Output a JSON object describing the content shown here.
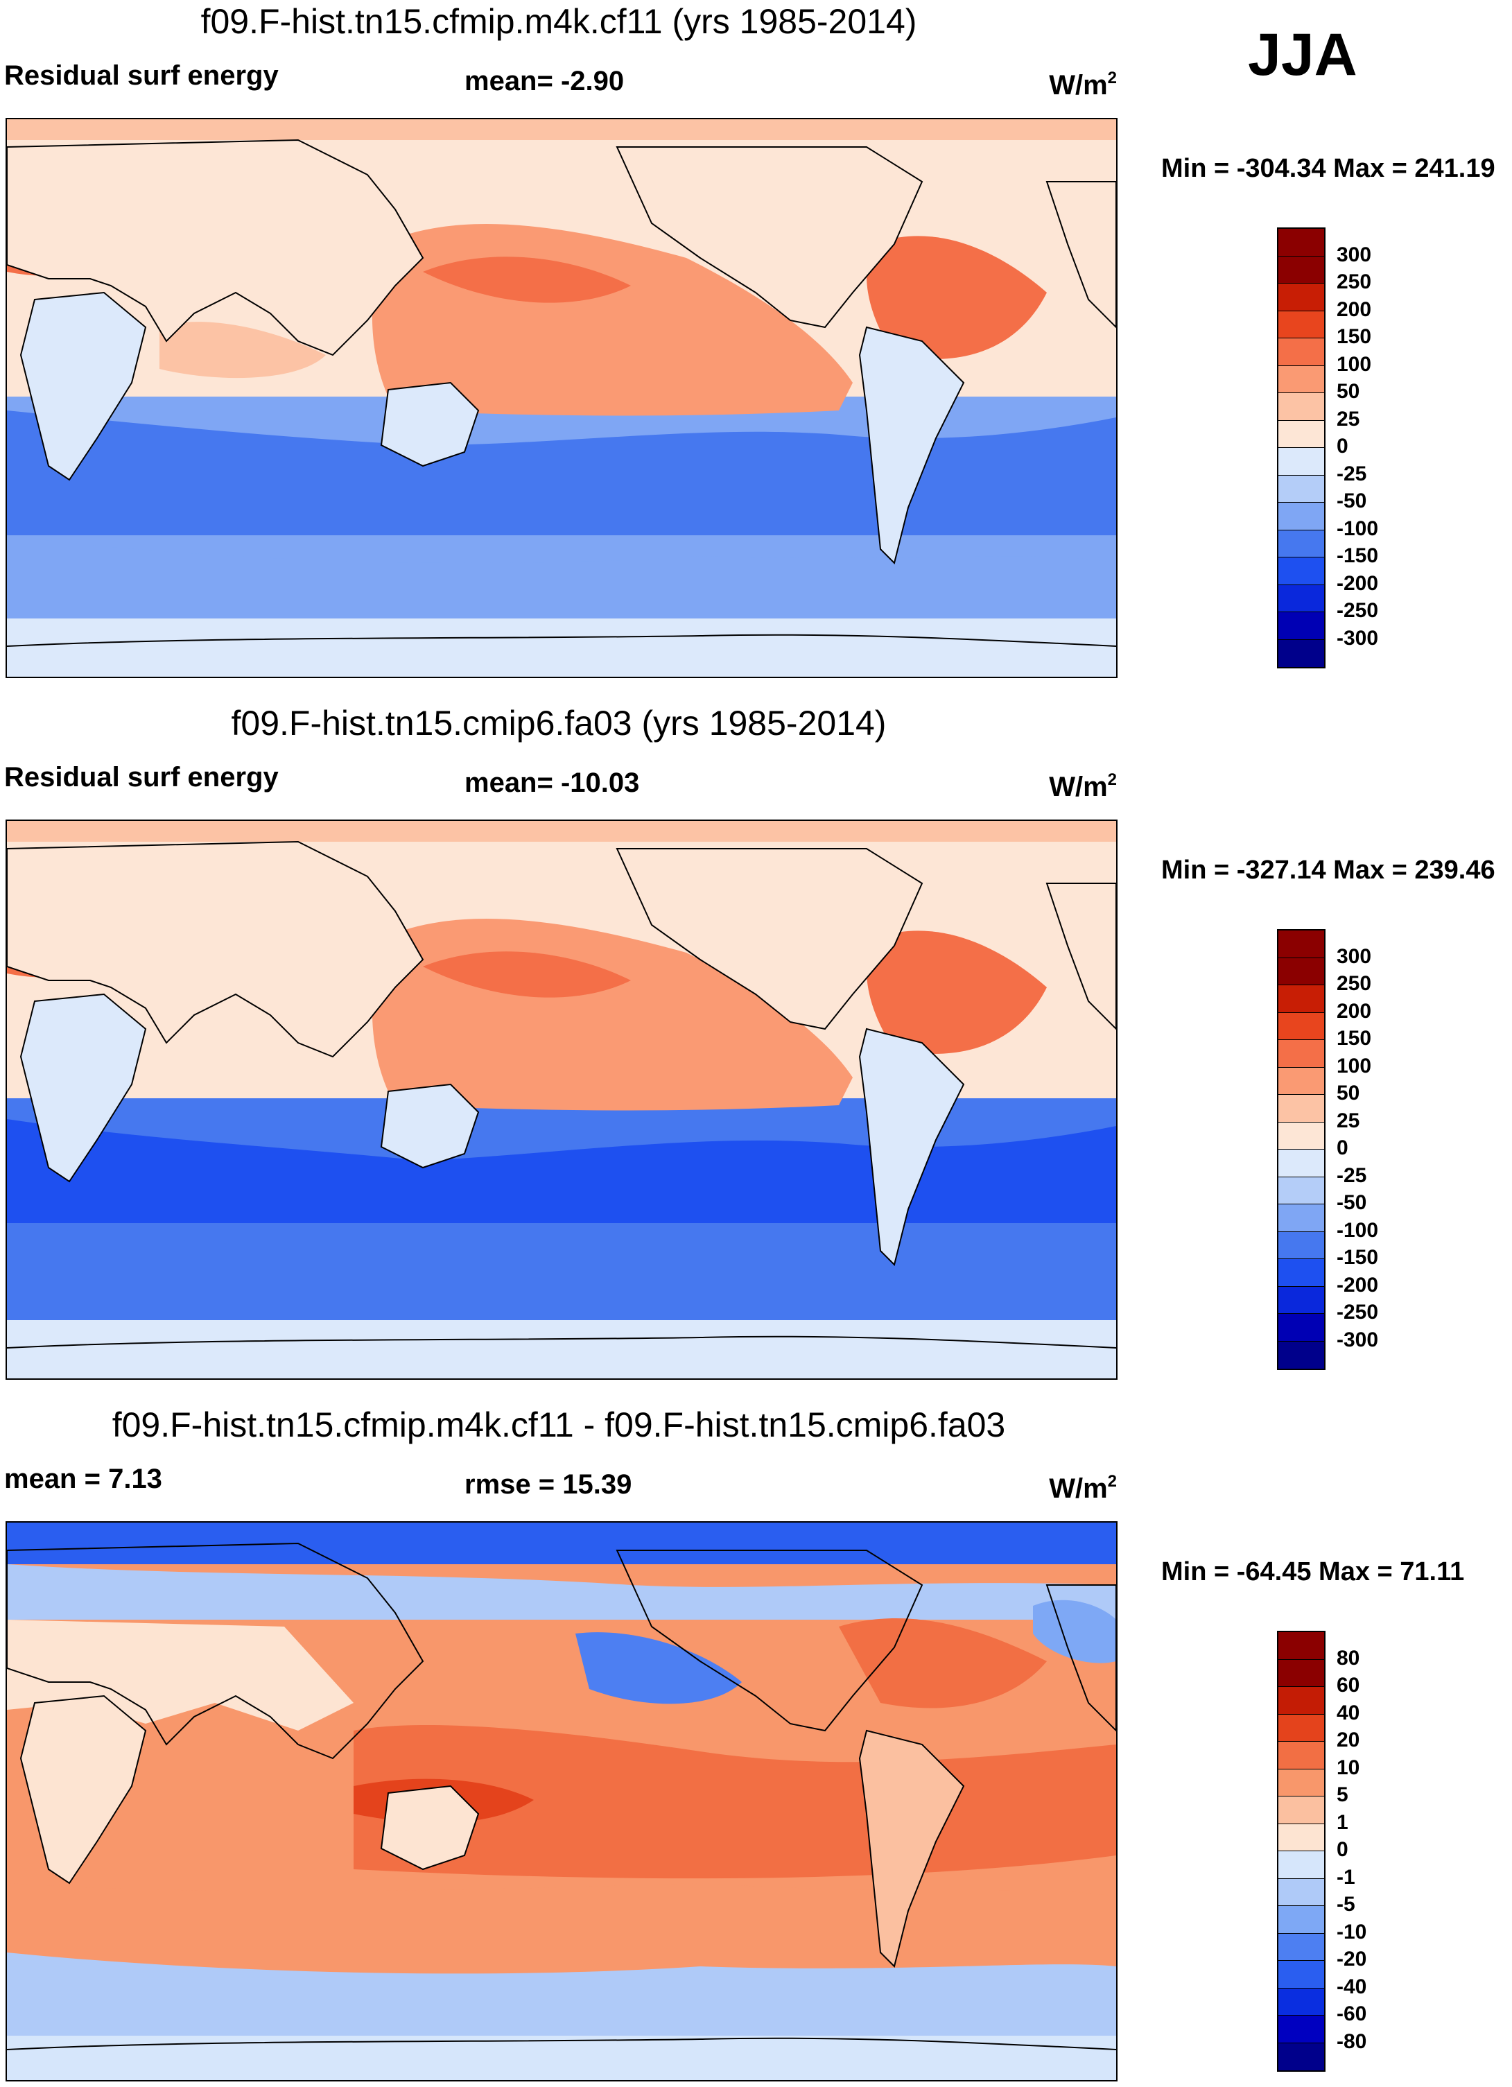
{
  "season": "JJA",
  "colors": {
    "abs": [
      "#00008b",
      "#0000b4",
      "#0a28dc",
      "#1e50f0",
      "#4678ef",
      "#7fa6f4",
      "#b4cdf8",
      "#dce9fb",
      "#fde6d6",
      "#fcc3a5",
      "#fa9a73",
      "#f46f48",
      "#e8451e",
      "#c81e05",
      "#8b0000"
    ],
    "diff": [
      "#00008b",
      "#0000c0",
      "#0a2ee0",
      "#2a5ef0",
      "#4d7ff2",
      "#7ea8f5",
      "#afcaf8",
      "#d6e6fb",
      "#fde4d2",
      "#fbc0a0",
      "#f8976b",
      "#f26f44",
      "#e4431c",
      "#c41c05",
      "#8b0000"
    ]
  },
  "panels": [
    {
      "title": "f09.F-hist.tn15.cfmip.m4k.cf11 (yrs 1985-2014)",
      "left_label": "Residual surf energy",
      "mid_label": "mean=  -2.90",
      "units": "W/m",
      "units_sup": "2",
      "minmax": "Min = -304.34 Max = 241.19",
      "ticks": [
        "300",
        "250",
        "200",
        "150",
        "100",
        "50",
        "25",
        "0",
        "-25",
        "-50",
        "-100",
        "-150",
        "-200",
        "-250",
        "-300"
      ]
    },
    {
      "title": "f09.F-hist.tn15.cmip6.fa03 (yrs 1985-2014)",
      "left_label": "Residual surf energy",
      "mid_label": "mean= -10.03",
      "units": "W/m",
      "units_sup": "2",
      "minmax": "Min = -327.14 Max = 239.46",
      "ticks": [
        "300",
        "250",
        "200",
        "150",
        "100",
        "50",
        "25",
        "0",
        "-25",
        "-50",
        "-100",
        "-150",
        "-200",
        "-250",
        "-300"
      ]
    },
    {
      "title": "f09.F-hist.tn15.cfmip.m4k.cf11 - f09.F-hist.tn15.cmip6.fa03",
      "left_label": "mean =   7.13",
      "mid_label": "rmse =  15.39",
      "units": "W/m",
      "units_sup": "2",
      "minmax": "Min = -64.45 Max =  71.11",
      "ticks": [
        "80",
        "60",
        "40",
        "20",
        "10",
        "5",
        "1",
        "0",
        "-1",
        "-5",
        "-10",
        "-20",
        "-40",
        "-60",
        "-80"
      ]
    }
  ]
}
